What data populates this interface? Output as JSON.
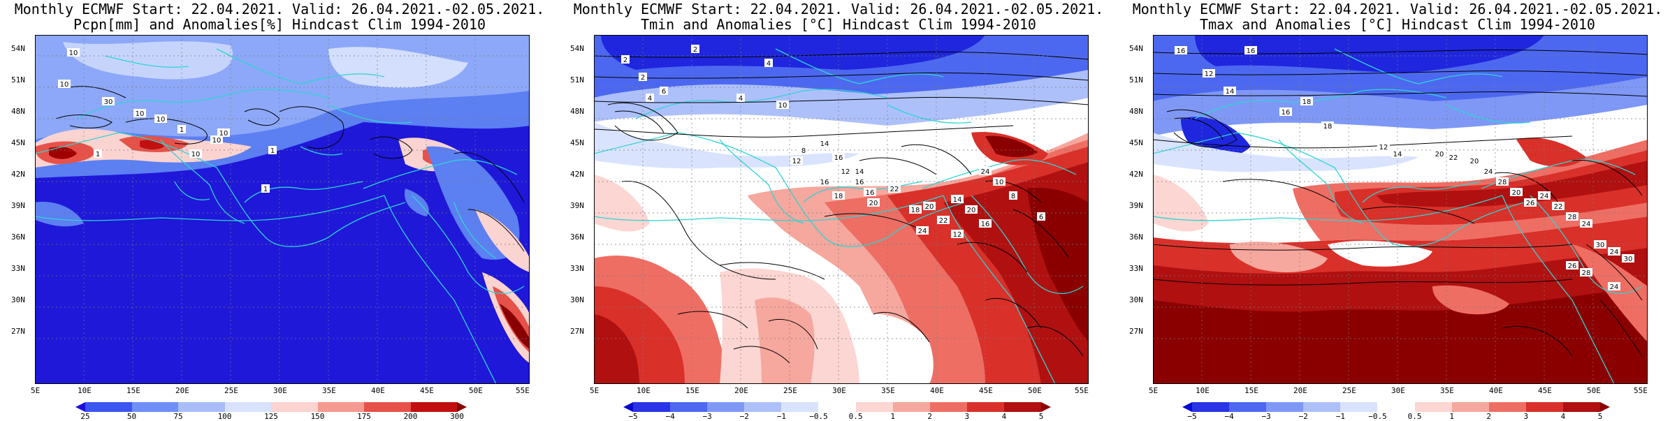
{
  "panels": [
    {
      "id": "pcpn",
      "title_line1": "Monthly ECMWF Start: 22.04.2021. Valid: 26.04.2021.-02.05.2021.",
      "title_line2": "Pcpn[mm] and Anomalies[%] Hindcast Clim 1994-2010",
      "lat_labels": [
        "54N",
        "51N",
        "48N",
        "45N",
        "42N",
        "39N",
        "36N",
        "33N",
        "30N",
        "27N"
      ],
      "lon_labels": [
        "5E",
        "10E",
        "15E",
        "20E",
        "25E",
        "30E",
        "35E",
        "40E",
        "45E",
        "50E",
        "55E"
      ],
      "colorbar_labels": [
        "25",
        "50",
        "75",
        "100",
        "125",
        "150",
        "175",
        "200",
        "300"
      ],
      "colorbar_colors": [
        "#1d0fe0",
        "#3b55f0",
        "#6f8ff6",
        "#a9bdfa",
        "#d8e2fd",
        "#fbd3d0",
        "#f49a90",
        "#e6524a",
        "#c21010",
        "#8a0000"
      ],
      "contour_labels": [
        "10",
        "10",
        "30",
        "10",
        "10",
        "1",
        "1",
        "10",
        "1",
        "1",
        "10",
        "10"
      ]
    },
    {
      "id": "tmin",
      "title_line1": "Monthly ECMWF Start: 22.04.2021. Valid: 26.04.2021.-02.05.2021.",
      "title_line2": "Tmin and Anomalies [°C] Hindcast Clim 1994-2010",
      "lat_labels": [
        "54N",
        "51N",
        "48N",
        "45N",
        "42N",
        "39N",
        "36N",
        "33N",
        "30N",
        "27N"
      ],
      "lon_labels": [
        "5E",
        "10E",
        "15E",
        "20E",
        "25E",
        "30E",
        "35E",
        "40E",
        "45E",
        "50E",
        "55E"
      ],
      "colorbar_labels": [
        "−5",
        "−4",
        "−3",
        "−2",
        "−1",
        "−0.5",
        "0.5",
        "1",
        "2",
        "3",
        "4",
        "5"
      ],
      "colorbar_colors": [
        "#0a0ad0",
        "#2a34e6",
        "#4d68f0",
        "#7f98f6",
        "#aec0fa",
        "#d9e3fd",
        "#ffffff",
        "#fcd6d2",
        "#f6a79e",
        "#ee6e64",
        "#d9302a",
        "#b01010",
        "#8a0000"
      ],
      "contour_labels": [
        "2",
        "2",
        "2",
        "4",
        "6",
        "4",
        "4",
        "10",
        "12",
        "8",
        "14",
        "16",
        "12",
        "14",
        "16",
        "18",
        "16",
        "16",
        "20",
        "22",
        "18",
        "20",
        "24",
        "22",
        "12",
        "14",
        "20",
        "16",
        "24",
        "10",
        "8",
        "6"
      ]
    },
    {
      "id": "tmax",
      "title_line1": "Monthly ECMWF Start: 22.04.2021. Valid: 26.04.2021.-02.05.2021.",
      "title_line2": "Tmax and Anomalies [°C] Hindcast Clim 1994-2010",
      "lat_labels": [
        "54N",
        "51N",
        "48N",
        "45N",
        "42N",
        "39N",
        "36N",
        "33N",
        "30N",
        "27N"
      ],
      "lon_labels": [
        "5E",
        "10E",
        "15E",
        "20E",
        "25E",
        "30E",
        "35E",
        "40E",
        "45E",
        "50E",
        "55E"
      ],
      "colorbar_labels": [
        "−5",
        "−4",
        "−3",
        "−2",
        "−1",
        "−0.5",
        "0.5",
        "1",
        "2",
        "3",
        "4",
        "5"
      ],
      "colorbar_colors": [
        "#0a0ad0",
        "#2a34e6",
        "#4d68f0",
        "#7f98f6",
        "#aec0fa",
        "#d9e3fd",
        "#ffffff",
        "#fcd6d2",
        "#f6a79e",
        "#ee6e64",
        "#d9302a",
        "#b01010",
        "#8a0000"
      ],
      "contour_labels": [
        "16",
        "16",
        "12",
        "14",
        "16",
        "18",
        "18",
        "12",
        "14",
        "20",
        "22",
        "20",
        "24",
        "28",
        "20",
        "26",
        "24",
        "22",
        "28",
        "24",
        "30",
        "24",
        "30",
        "26",
        "28",
        "24"
      ]
    }
  ]
}
